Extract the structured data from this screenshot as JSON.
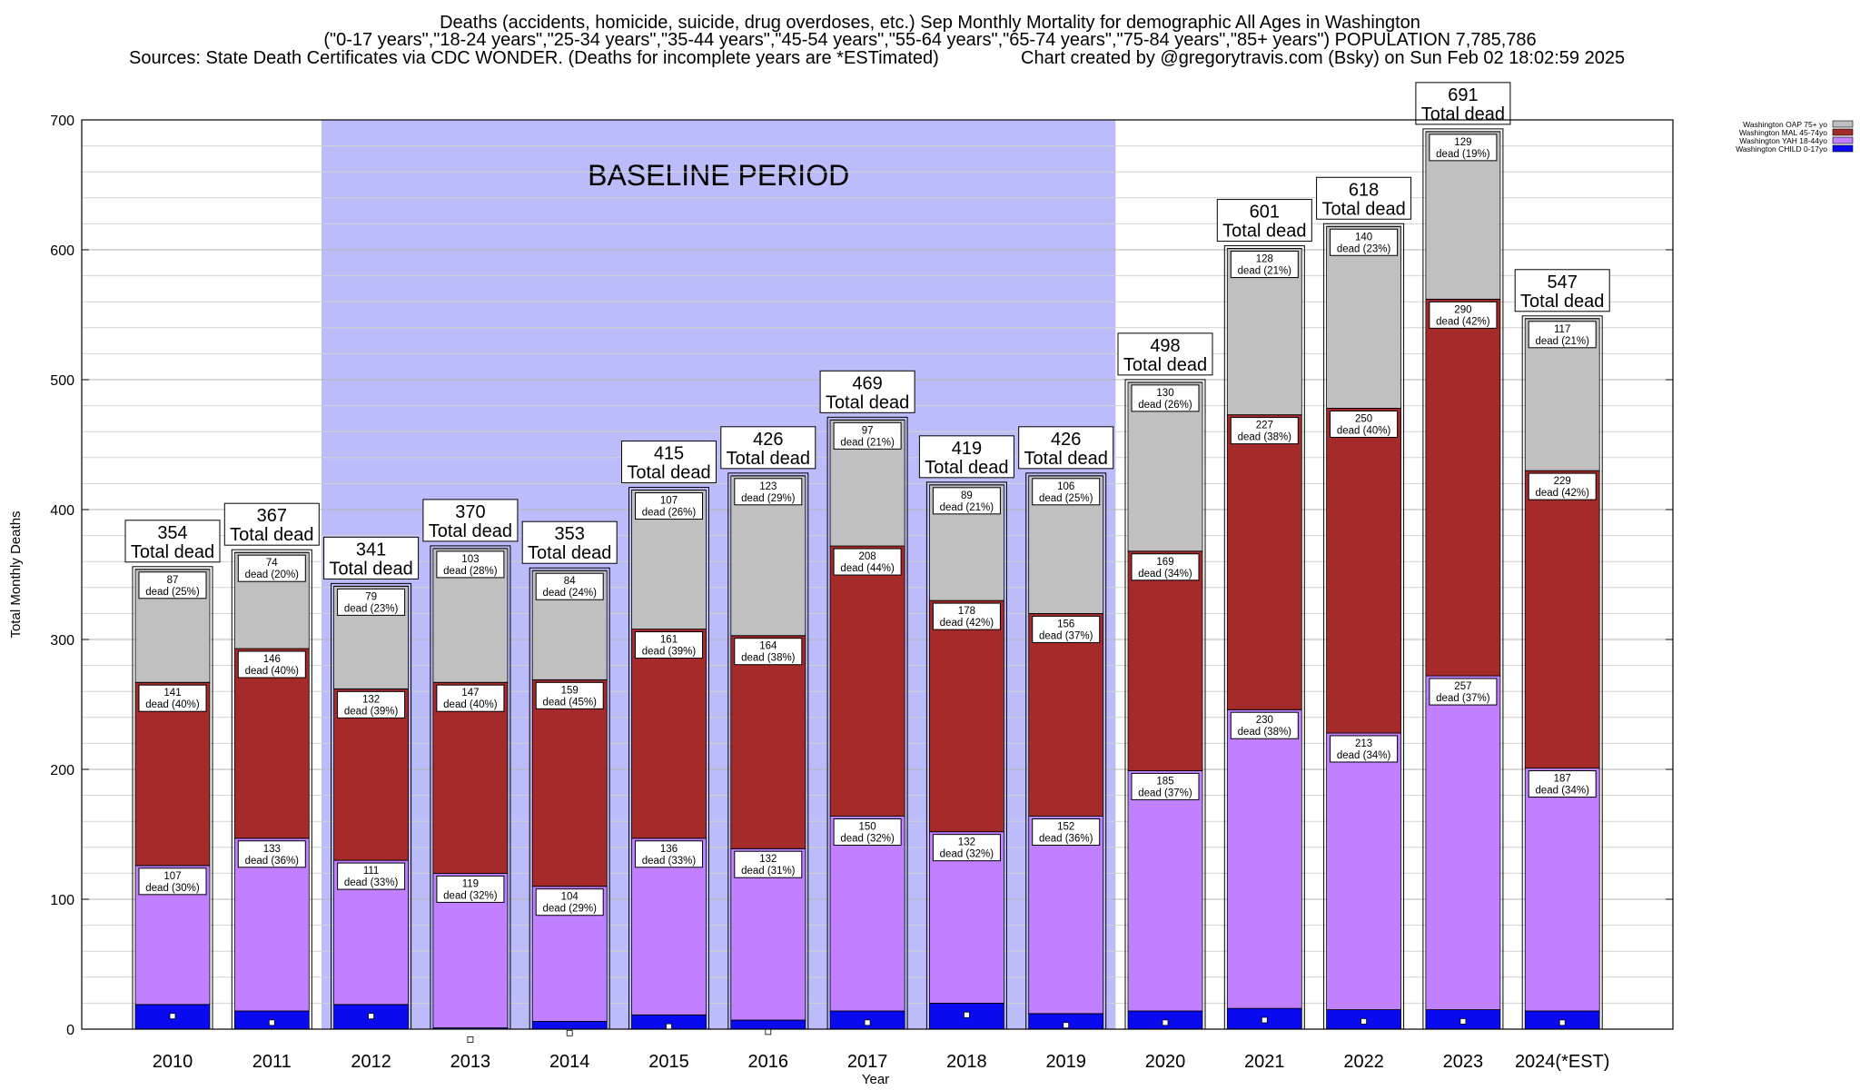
{
  "header": {
    "line1": "Deaths (accidents, homicide, suicide, drug overdoses, etc.) Sep Monthly Mortality for demographic All Ages in Washington",
    "line2": "(\"0-17 years\",\"18-24 years\",\"25-34 years\",\"35-44 years\",\"45-54 years\",\"55-64 years\",\"65-74 years\",\"75-84 years\",\"85+ years\") POPULATION 7,785,786",
    "line3a": "Sources: State Death Certificates via CDC WONDER. (Deaths for incomplete years are *ESTimated)",
    "line3b": "Chart created by @gregorytravis.com (Bsky) on Sun Feb 02 18:02:59 2025"
  },
  "chart_data": {
    "type": "bar",
    "stacked": true,
    "ylabel": "Total Monthly Deaths",
    "xlabel": "Year",
    "ylim": [
      0,
      700
    ],
    "yticks": [
      0,
      100,
      200,
      300,
      400,
      500,
      600,
      700
    ],
    "grid": true,
    "baseline_label": "BASELINE PERIOD",
    "baseline_range": [
      "2012",
      "2019"
    ],
    "total_label": "Total dead",
    "dead_word": "dead",
    "legend_position": "top-right",
    "categories": [
      "2010",
      "2011",
      "2012",
      "2013",
      "2014",
      "2015",
      "2016",
      "2017",
      "2018",
      "2019",
      "2020",
      "2021",
      "2022",
      "2023",
      "2024(*EST)"
    ],
    "totals": [
      354,
      367,
      341,
      370,
      353,
      415,
      426,
      469,
      419,
      426,
      498,
      601,
      618,
      691,
      547
    ],
    "series": [
      {
        "name": "Washington CHILD 0-17yo",
        "color": "#0a0af0",
        "values": [
          19,
          14,
          19,
          1,
          6,
          11,
          7,
          14,
          20,
          12,
          14,
          16,
          15,
          15,
          14
        ],
        "pct": [
          null,
          null,
          null,
          null,
          null,
          null,
          null,
          null,
          null,
          null,
          null,
          null,
          null,
          null,
          null
        ],
        "marker": [
          10,
          5,
          10,
          -8,
          -3,
          2,
          -2,
          5,
          11,
          3,
          5,
          7,
          6,
          6,
          5
        ]
      },
      {
        "name": "Washington YAH 18-44yo",
        "color": "#c080ff",
        "values": [
          107,
          133,
          111,
          119,
          104,
          136,
          132,
          150,
          132,
          152,
          185,
          230,
          213,
          257,
          187
        ],
        "pct": [
          30,
          36,
          33,
          32,
          29,
          33,
          31,
          32,
          32,
          36,
          37,
          38,
          34,
          37,
          34
        ]
      },
      {
        "name": "Washington MAL 45-74yo",
        "color": "#a52a2a",
        "values": [
          141,
          146,
          132,
          147,
          159,
          161,
          164,
          208,
          178,
          156,
          169,
          227,
          250,
          290,
          229
        ],
        "pct": [
          40,
          40,
          39,
          40,
          45,
          39,
          38,
          44,
          42,
          37,
          34,
          38,
          40,
          42,
          42
        ]
      },
      {
        "name": "Washington OAP 75+ yo",
        "color": "#c0c0c0",
        "values": [
          87,
          74,
          79,
          103,
          84,
          107,
          123,
          97,
          89,
          106,
          130,
          128,
          140,
          129,
          117
        ],
        "pct": [
          25,
          20,
          23,
          28,
          24,
          26,
          29,
          21,
          21,
          25,
          26,
          21,
          23,
          19,
          21
        ]
      }
    ]
  }
}
